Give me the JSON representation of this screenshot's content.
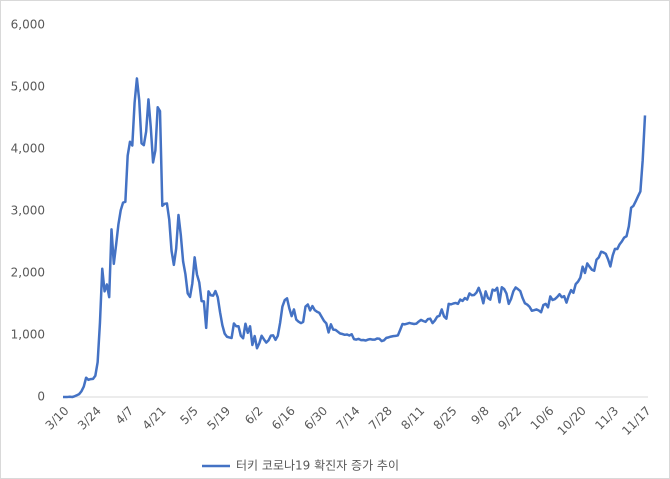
{
  "chart_data": {
    "type": "line",
    "categories": [
      "3/10",
      null,
      null,
      null,
      null,
      null,
      null,
      null,
      null,
      null,
      null,
      null,
      null,
      null,
      "3/24",
      null,
      null,
      null,
      null,
      null,
      null,
      null,
      null,
      null,
      null,
      null,
      null,
      null,
      "4/7",
      null,
      null,
      null,
      null,
      null,
      null,
      null,
      null,
      null,
      null,
      null,
      null,
      null,
      "4/21",
      null,
      null,
      null,
      null,
      null,
      null,
      null,
      null,
      null,
      null,
      null,
      null,
      null,
      "5/5",
      null,
      null,
      null,
      null,
      null,
      null,
      null,
      null,
      null,
      null,
      null,
      null,
      null,
      "5/19",
      null,
      null,
      null,
      null,
      null,
      null,
      null,
      null,
      null,
      null,
      null,
      null,
      null,
      "6/2",
      null,
      null,
      null,
      null,
      null,
      null,
      null,
      null,
      null,
      null,
      null,
      null,
      null,
      "6/16",
      null,
      null,
      null,
      null,
      null,
      null,
      null,
      null,
      null,
      null,
      null,
      null,
      null,
      "6/30",
      null,
      null,
      null,
      null,
      null,
      null,
      null,
      null,
      null,
      null,
      null,
      null,
      null,
      "7/14",
      null,
      null,
      null,
      null,
      null,
      null,
      null,
      null,
      null,
      null,
      null,
      null,
      null,
      "7/28",
      null,
      null,
      null,
      null,
      null,
      null,
      null,
      null,
      null,
      null,
      null,
      null,
      null,
      "8/11",
      null,
      null,
      null,
      null,
      null,
      null,
      null,
      null,
      null,
      null,
      null,
      null,
      null,
      "8/25",
      null,
      null,
      null,
      null,
      null,
      null,
      null,
      null,
      null,
      null,
      null,
      null,
      null,
      "9/8",
      null,
      null,
      null,
      null,
      null,
      null,
      null,
      null,
      null,
      null,
      null,
      null,
      null,
      "9/22",
      null,
      null,
      null,
      null,
      null,
      null,
      null,
      null,
      null,
      null,
      null,
      null,
      null,
      "10/6",
      null,
      null,
      null,
      null,
      null,
      null,
      null,
      null,
      null,
      null,
      null,
      null,
      null,
      "10/20",
      null,
      null,
      null,
      null,
      null,
      null,
      null,
      null,
      null,
      null,
      null,
      null,
      null,
      "11/3",
      null,
      null,
      null,
      null,
      null,
      null,
      null,
      null,
      null,
      null,
      null,
      null,
      null,
      "11/17"
    ],
    "series": [
      {
        "name": "터키 코로나19 확진자 증가 추이",
        "color": "#4472c4",
        "values": [
          1,
          0,
          1,
          4,
          0,
          12,
          29,
          47,
          93,
          168,
          311,
          277,
          289,
          293,
          343,
          561,
          1196,
          2069,
          1704,
          1815,
          1610,
          2704,
          2148,
          2456,
          2786,
          3013,
          3135,
          3148,
          3892,
          4117,
          4056,
          4747,
          5138,
          4789,
          4093,
          4062,
          4281,
          4801,
          4353,
          3783,
          3977,
          4674,
          4611,
          3083,
          3116,
          3122,
          2861,
          2357,
          2131,
          2392,
          2936,
          2615,
          2188,
          1983,
          1670,
          1614,
          1832,
          2253,
          1977,
          1848,
          1546,
          1542,
          1114,
          1704,
          1641,
          1635,
          1708,
          1610,
          1368,
          1158,
          1022,
          972,
          961,
          952,
          1186,
          1141,
          1141,
          987,
          948,
          1182,
          1035,
          1141,
          839,
          983,
          786,
          867,
          988,
          930,
          878,
          914,
          989,
          993,
          922,
          987,
          1195,
          1459,
          1562,
          1592,
          1429,
          1304,
          1412,
          1248,
          1214,
          1192,
          1212,
          1458,
          1492,
          1396,
          1467,
          1402,
          1374,
          1356,
          1293,
          1228,
          1188,
          1041,
          1172,
          1086,
          1083,
          1053,
          1024,
          1016,
          1003,
          1008,
          992,
          1012,
          933,
          926,
          938,
          918,
          919,
          911,
          925,
          933,
          926,
          925,
          944,
          939,
          902,
          915,
          954,
          962,
          974,
          982,
          986,
          993,
          1083,
          1178,
          1172,
          1183,
          1195,
          1185,
          1178,
          1183,
          1216,
          1243,
          1226,
          1212,
          1256,
          1263,
          1192,
          1233,
          1295,
          1309,
          1412,
          1298,
          1263,
          1502,
          1494,
          1508,
          1517,
          1502,
          1572,
          1549,
          1596,
          1572,
          1671,
          1642,
          1645,
          1683,
          1761,
          1660,
          1512,
          1704,
          1597,
          1571,
          1732,
          1716,
          1761,
          1527,
          1771,
          1742,
          1671,
          1502,
          1581,
          1706,
          1767,
          1739,
          1708,
          1596,
          1512,
          1491,
          1456,
          1391,
          1400,
          1413,
          1396,
          1367,
          1483,
          1502,
          1447,
          1622,
          1564,
          1580,
          1614,
          1658,
          1609,
          1626,
          1522,
          1640,
          1724,
          1681,
          1821,
          1861,
          1925,
          2102,
          2001,
          2154,
          2102,
          2053,
          2036,
          2213,
          2252,
          2343,
          2331,
          2310,
          2222,
          2106,
          2281,
          2390,
          2387,
          2462,
          2510,
          2572,
          2593,
          2753,
          3053,
          3083,
          3158,
          3239,
          3316,
          3819,
          4542
        ]
      }
    ],
    "ylim": [
      0,
      6000
    ],
    "yticks": [
      0,
      {
        "value": 1000,
        "label": "1,000"
      },
      {
        "value": 2000,
        "label": "2,000"
      },
      {
        "value": 3000,
        "label": "3,000"
      },
      {
        "value": 4000,
        "label": "4,000"
      },
      {
        "value": 5000,
        "label": "5,000"
      },
      {
        "value": 6000,
        "label": "6,000"
      }
    ],
    "grid": false,
    "legend": "bottom"
  }
}
